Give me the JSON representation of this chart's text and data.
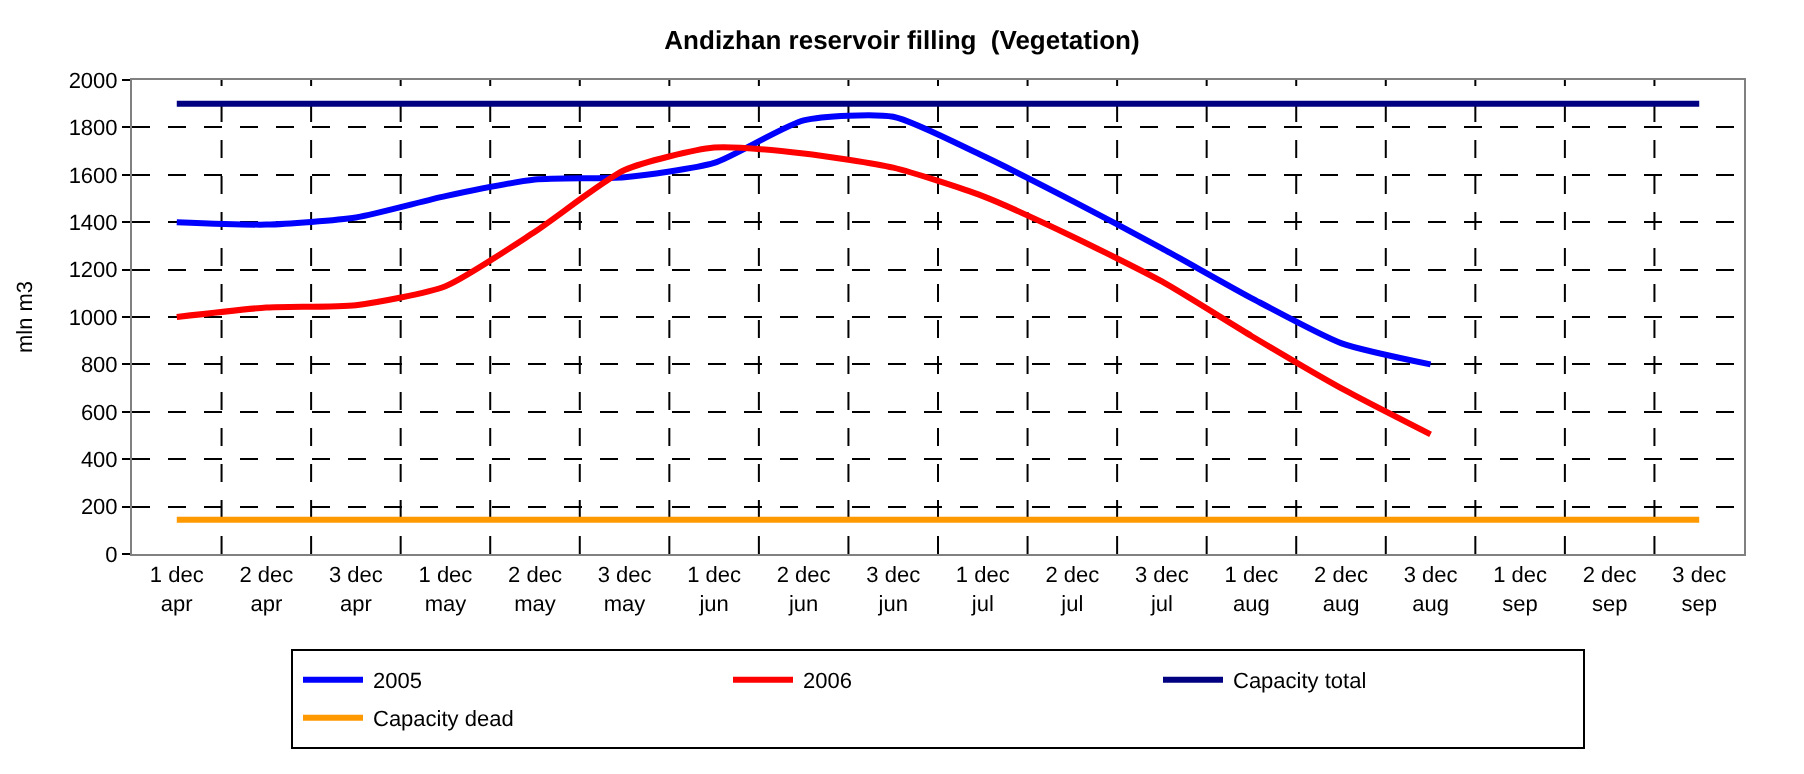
{
  "chart_data": {
    "type": "line",
    "title": "Andizhan reservoir filling  (Vegetation)",
    "ylabel": "mln m3",
    "categories": [
      "1 dec\napr",
      "2 dec\napr",
      "3 dec\napr",
      "1 dec\nmay",
      "2 dec\nmay",
      "3 dec\nmay",
      "1 dec\njun",
      "2 dec\njun",
      "3 dec\njun",
      "1 dec\njul",
      "2 dec\njul",
      "3 dec\njul",
      "1 dec\naug",
      "2 dec\naug",
      "3 dec\naug",
      "1 dec\nsep",
      "2 dec\nsep",
      "3 dec\nsep"
    ],
    "series": [
      {
        "name": "2005",
        "color": "#0000ff",
        "values": [
          1400,
          1390,
          1420,
          1510,
          1580,
          1590,
          1650,
          1830,
          1845,
          1680,
          1490,
          1290,
          1080,
          890,
          800,
          null,
          null,
          null
        ]
      },
      {
        "name": "2006",
        "color": "#ff0000",
        "values": [
          1000,
          1040,
          1050,
          1130,
          1360,
          1620,
          1715,
          1690,
          1630,
          1510,
          1340,
          1150,
          920,
          700,
          505,
          null,
          null,
          null
        ]
      },
      {
        "name": "Capacity total",
        "color": "#000080",
        "values": [
          1900,
          1900,
          1900,
          1900,
          1900,
          1900,
          1900,
          1900,
          1900,
          1900,
          1900,
          1900,
          1900,
          1900,
          1900,
          1900,
          1900,
          1900
        ]
      },
      {
        "name": "Capacity dead",
        "color": "#ff9900",
        "values": [
          145,
          145,
          145,
          145,
          145,
          145,
          145,
          145,
          145,
          145,
          145,
          145,
          145,
          145,
          145,
          145,
          145,
          145
        ]
      }
    ],
    "ylim": [
      0,
      2000
    ],
    "yticks": [
      0,
      200,
      400,
      600,
      800,
      1000,
      1200,
      1400,
      1600,
      1800,
      2000
    ],
    "grid": true,
    "legend": "bottom",
    "marker": "none",
    "line_style": "solid"
  }
}
